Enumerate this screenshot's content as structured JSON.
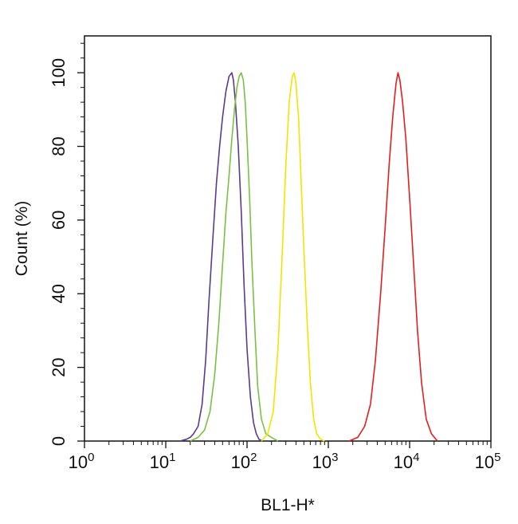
{
  "chart_data": {
    "type": "line",
    "title": "",
    "xlabel": "BL1-H*",
    "ylabel": "Count (%)",
    "x_scale": "log",
    "xlim": [
      1,
      100000
    ],
    "ylim": [
      0,
      110
    ],
    "x_ticks": [
      {
        "base": "10",
        "exp": "0",
        "value": 1
      },
      {
        "base": "10",
        "exp": "1",
        "value": 10
      },
      {
        "base": "10",
        "exp": "2",
        "value": 100
      },
      {
        "base": "10",
        "exp": "3",
        "value": 1000
      },
      {
        "base": "10",
        "exp": "4",
        "value": 10000
      },
      {
        "base": "10",
        "exp": "5",
        "value": 100000
      }
    ],
    "y_ticks": [
      "0",
      "20",
      "40",
      "60",
      "80",
      "100"
    ],
    "grid": false,
    "legend": "none",
    "series": [
      {
        "color": "#5b3a8c",
        "x": [
          15,
          18,
          20,
          22,
          25,
          28,
          31,
          34,
          38,
          42,
          46,
          50,
          55,
          60,
          65,
          68,
          72,
          78,
          85,
          92,
          100,
          110,
          120,
          130,
          140,
          155
        ],
        "y": [
          0,
          0.5,
          1,
          2,
          4,
          10,
          22,
          38,
          55,
          70,
          80,
          88,
          95,
          99,
          100,
          98,
          92,
          80,
          62,
          42,
          25,
          12,
          5,
          2,
          0.5,
          0
        ]
      },
      {
        "color": "#7ac143",
        "x": [
          20,
          25,
          30,
          35,
          40,
          45,
          50,
          55,
          60,
          65,
          70,
          75,
          80,
          85,
          90,
          95,
          100,
          108,
          115,
          125,
          135,
          150,
          170,
          200,
          240
        ],
        "y": [
          0,
          1,
          3,
          8,
          18,
          32,
          48,
          62,
          72,
          82,
          90,
          96,
          99,
          100,
          98,
          92,
          82,
          65,
          48,
          30,
          15,
          6,
          2,
          1,
          0
        ]
      },
      {
        "color": "#f0e500",
        "x": [
          150,
          180,
          210,
          240,
          270,
          300,
          330,
          360,
          380,
          400,
          430,
          460,
          500,
          550,
          600,
          660,
          720,
          800,
          900
        ],
        "y": [
          0,
          2,
          8,
          25,
          50,
          75,
          92,
          99,
          100,
          97,
          88,
          72,
          52,
          32,
          16,
          6,
          2,
          0.5,
          0
        ]
      },
      {
        "color": "#e02020",
        "x": [
          1800,
          2300,
          2800,
          3300,
          3800,
          4400,
          5000,
          5600,
          6200,
          6800,
          7200,
          7600,
          8200,
          9000,
          10000,
          11200,
          12500,
          14000,
          16000,
          18500,
          22000
        ],
        "y": [
          0,
          1,
          4,
          10,
          22,
          40,
          58,
          75,
          88,
          97,
          100,
          98,
          92,
          82,
          66,
          48,
          30,
          16,
          6,
          2,
          0
        ]
      }
    ]
  }
}
